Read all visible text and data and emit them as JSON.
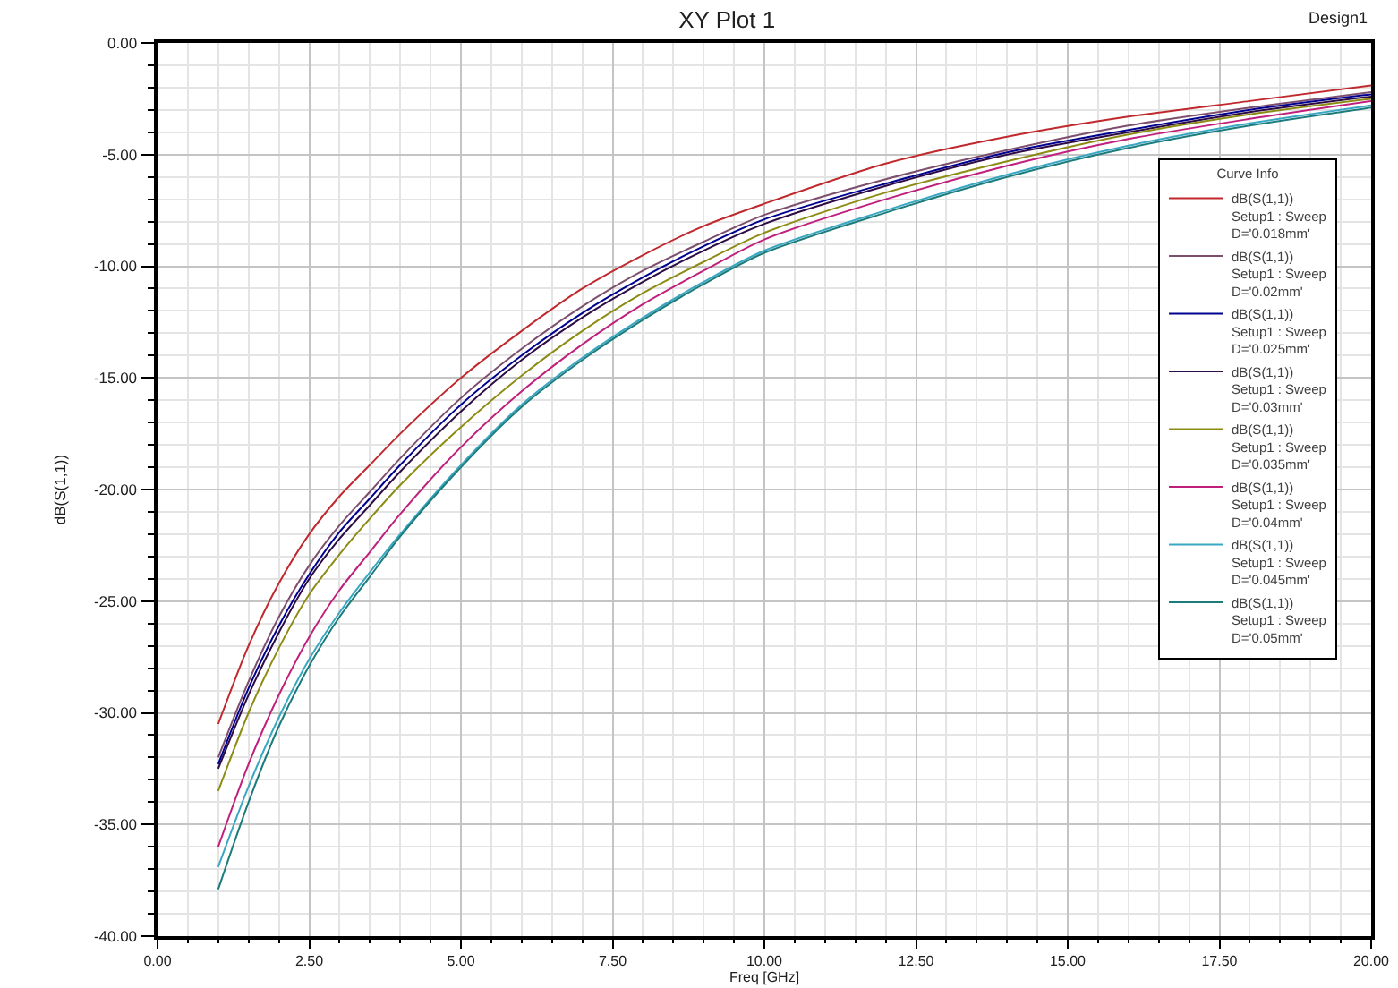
{
  "chart_data": {
    "type": "line",
    "title": "XY Plot 1",
    "xlabel": "Freq [GHz]",
    "ylabel": "dB(S(1,1))",
    "legend_title": "Curve Info",
    "legend": "right",
    "grid": true,
    "annotations": [
      "Design1"
    ],
    "xlim": [
      0,
      20
    ],
    "ylim": [
      -40,
      0
    ],
    "xticks": [
      {
        "value": 0,
        "label": "0.00"
      },
      {
        "value": 0.5,
        "label": null
      },
      {
        "value": 1,
        "label": null
      },
      {
        "value": 1.5,
        "label": null
      },
      {
        "value": 2,
        "label": null
      },
      {
        "value": 2.5,
        "label": "2.50"
      },
      {
        "value": 3,
        "label": null
      },
      {
        "value": 3.5,
        "label": null
      },
      {
        "value": 4,
        "label": null
      },
      {
        "value": 4.5,
        "label": null
      },
      {
        "value": 5,
        "label": "5.00"
      },
      {
        "value": 5.5,
        "label": null
      },
      {
        "value": 6,
        "label": null
      },
      {
        "value": 6.5,
        "label": null
      },
      {
        "value": 7,
        "label": null
      },
      {
        "value": 7.5,
        "label": "7.50"
      },
      {
        "value": 8,
        "label": null
      },
      {
        "value": 8.5,
        "label": null
      },
      {
        "value": 9,
        "label": null
      },
      {
        "value": 9.5,
        "label": null
      },
      {
        "value": 10,
        "label": "10.00"
      },
      {
        "value": 10.5,
        "label": null
      },
      {
        "value": 11,
        "label": null
      },
      {
        "value": 11.5,
        "label": null
      },
      {
        "value": 12,
        "label": null
      },
      {
        "value": 12.5,
        "label": "12.50"
      },
      {
        "value": 13,
        "label": null
      },
      {
        "value": 13.5,
        "label": null
      },
      {
        "value": 14,
        "label": null
      },
      {
        "value": 14.5,
        "label": null
      },
      {
        "value": 15,
        "label": "15.00"
      },
      {
        "value": 15.5,
        "label": null
      },
      {
        "value": 16,
        "label": null
      },
      {
        "value": 16.5,
        "label": null
      },
      {
        "value": 17,
        "label": null
      },
      {
        "value": 17.5,
        "label": "17.50"
      },
      {
        "value": 18,
        "label": null
      },
      {
        "value": 18.5,
        "label": null
      },
      {
        "value": 19,
        "label": null
      },
      {
        "value": 19.5,
        "label": null
      },
      {
        "value": 20,
        "label": "20.00"
      }
    ],
    "yticks": [
      {
        "value": -40,
        "label": "-40.00"
      },
      {
        "value": -39,
        "label": null
      },
      {
        "value": -38,
        "label": null
      },
      {
        "value": -37,
        "label": null
      },
      {
        "value": -36,
        "label": null
      },
      {
        "value": -35,
        "label": "-35.00"
      },
      {
        "value": -34,
        "label": null
      },
      {
        "value": -33,
        "label": null
      },
      {
        "value": -32,
        "label": null
      },
      {
        "value": -31,
        "label": null
      },
      {
        "value": -30,
        "label": "-30.00"
      },
      {
        "value": -29,
        "label": null
      },
      {
        "value": -28,
        "label": null
      },
      {
        "value": -27,
        "label": null
      },
      {
        "value": -26,
        "label": null
      },
      {
        "value": -25,
        "label": "-25.00"
      },
      {
        "value": -24,
        "label": null
      },
      {
        "value": -23,
        "label": null
      },
      {
        "value": -22,
        "label": null
      },
      {
        "value": -21,
        "label": null
      },
      {
        "value": -20,
        "label": "-20.00"
      },
      {
        "value": -19,
        "label": null
      },
      {
        "value": -18,
        "label": null
      },
      {
        "value": -17,
        "label": null
      },
      {
        "value": -16,
        "label": null
      },
      {
        "value": -15,
        "label": "-15.00"
      },
      {
        "value": -14,
        "label": null
      },
      {
        "value": -13,
        "label": null
      },
      {
        "value": -12,
        "label": null
      },
      {
        "value": -11,
        "label": null
      },
      {
        "value": -10,
        "label": "-10.00"
      },
      {
        "value": -9,
        "label": null
      },
      {
        "value": -8,
        "label": null
      },
      {
        "value": -7,
        "label": null
      },
      {
        "value": -6,
        "label": null
      },
      {
        "value": -5,
        "label": "-5.00"
      },
      {
        "value": -4,
        "label": null
      },
      {
        "value": -3,
        "label": null
      },
      {
        "value": -2,
        "label": null
      },
      {
        "value": -1,
        "label": null
      },
      {
        "value": 0,
        "label": "0.00"
      }
    ],
    "x": [
      1,
      1.5,
      2,
      2.5,
      3,
      3.5,
      4,
      5,
      6,
      7,
      8,
      9,
      10,
      12,
      14,
      16,
      18,
      20
    ],
    "series": [
      {
        "name": "dB(S(1,1))\nSetup1 : Sweep\nD='0.018mm'",
        "color": "#c0282d",
        "values": [
          -30.5,
          -27.0,
          -24.2,
          -22.0,
          -20.3,
          -18.9,
          -17.5,
          -15.0,
          -12.9,
          -11.0,
          -9.5,
          -8.2,
          -7.2,
          -5.4,
          -4.2,
          -3.3,
          -2.6,
          -1.9
        ]
      },
      {
        "name": "dB(S(1,1))\nSetup1 : Sweep\nD='0.02mm'",
        "color": "#7d4f6d",
        "values": [
          -32.0,
          -28.6,
          -25.7,
          -23.4,
          -21.6,
          -20.1,
          -18.6,
          -15.9,
          -13.7,
          -11.8,
          -10.2,
          -8.9,
          -7.7,
          -6.1,
          -4.8,
          -3.7,
          -2.9,
          -2.2
        ]
      },
      {
        "name": "dB(S(1,1))\nSetup1 : Sweep\nD='0.025mm'",
        "color": "#000090",
        "values": [
          -32.3,
          -28.9,
          -26.1,
          -23.8,
          -21.9,
          -20.4,
          -18.9,
          -16.2,
          -14.0,
          -12.1,
          -10.5,
          -9.1,
          -7.9,
          -6.3,
          -4.9,
          -3.9,
          -3.0,
          -2.3
        ]
      },
      {
        "name": "dB(S(1,1))\nSetup1 : Sweep\nD='0.03mm'",
        "color": "#2d0b45",
        "values": [
          -32.5,
          -29.2,
          -26.4,
          -24.0,
          -22.2,
          -20.7,
          -19.2,
          -16.5,
          -14.2,
          -12.3,
          -10.7,
          -9.3,
          -8.1,
          -6.4,
          -5.0,
          -4.0,
          -3.1,
          -2.4
        ]
      },
      {
        "name": "dB(S(1,1))\nSetup1 : Sweep\nD='0.035mm'",
        "color": "#8c8c14",
        "values": [
          -33.5,
          -30.0,
          -27.1,
          -24.7,
          -22.9,
          -21.3,
          -19.8,
          -17.2,
          -14.9,
          -12.9,
          -11.2,
          -9.8,
          -8.5,
          -6.7,
          -5.3,
          -4.1,
          -3.2,
          -2.5
        ]
      },
      {
        "name": "dB(S(1,1))\nSetup1 : Sweep\nD='0.04mm'",
        "color": "#c0207c",
        "values": [
          -36.0,
          -32.3,
          -29.2,
          -26.6,
          -24.5,
          -22.8,
          -21.1,
          -18.1,
          -15.6,
          -13.5,
          -11.7,
          -10.2,
          -8.8,
          -7.0,
          -5.5,
          -4.3,
          -3.4,
          -2.6
        ]
      },
      {
        "name": "dB(S(1,1))\nSetup1 : Sweep\nD='0.045mm'",
        "color": "#39a7c3",
        "values": [
          -36.9,
          -33.3,
          -30.2,
          -27.6,
          -25.5,
          -23.7,
          -22.0,
          -18.9,
          -16.2,
          -14.1,
          -12.3,
          -10.7,
          -9.3,
          -7.5,
          -5.9,
          -4.6,
          -3.6,
          -2.8
        ]
      },
      {
        "name": "dB(S(1,1))\nSetup1 : Sweep\nD='0.05mm'",
        "color": "#1c7b7b",
        "values": [
          -37.9,
          -34.0,
          -30.6,
          -27.9,
          -25.7,
          -23.9,
          -22.1,
          -19.0,
          -16.3,
          -14.2,
          -12.4,
          -10.8,
          -9.4,
          -7.6,
          -6.0,
          -4.7,
          -3.7,
          -2.9
        ]
      }
    ]
  }
}
